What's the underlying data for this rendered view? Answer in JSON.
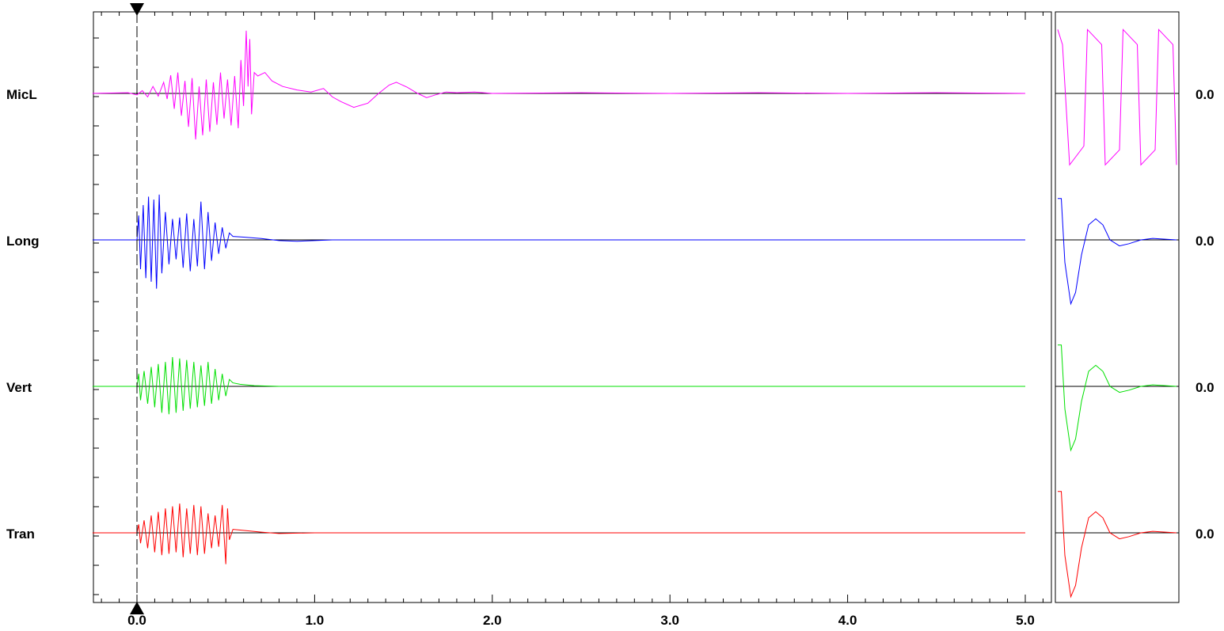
{
  "chart_data": {
    "type": "line",
    "title": "",
    "xlabel": "",
    "ylabel": "",
    "xlim": [
      -0.25,
      5.15
    ],
    "x_ticks": [
      "0.0",
      "1.0",
      "2.0",
      "3.0",
      "4.0",
      "5.0"
    ],
    "trigger_marker_x": 0.0,
    "grid": false,
    "series": [
      {
        "name": "MicL",
        "color": "#ff00ff",
        "right_value": "0.0",
        "points": [
          [
            -0.25,
            0
          ],
          [
            -0.05,
            0.01
          ],
          [
            0.0,
            -0.02
          ],
          [
            0.03,
            0.04
          ],
          [
            0.06,
            -0.05
          ],
          [
            0.09,
            0.1
          ],
          [
            0.12,
            -0.04
          ],
          [
            0.15,
            0.16
          ],
          [
            0.17,
            -0.08
          ],
          [
            0.19,
            0.26
          ],
          [
            0.21,
            -0.22
          ],
          [
            0.23,
            0.3
          ],
          [
            0.25,
            -0.32
          ],
          [
            0.27,
            0.18
          ],
          [
            0.29,
            -0.48
          ],
          [
            0.31,
            0.22
          ],
          [
            0.33,
            -0.66
          ],
          [
            0.35,
            0.1
          ],
          [
            0.37,
            -0.6
          ],
          [
            0.39,
            0.2
          ],
          [
            0.41,
            -0.55
          ],
          [
            0.43,
            0.16
          ],
          [
            0.45,
            -0.45
          ],
          [
            0.47,
            0.3
          ],
          [
            0.49,
            -0.36
          ],
          [
            0.51,
            0.2
          ],
          [
            0.53,
            -0.46
          ],
          [
            0.55,
            0.25
          ],
          [
            0.57,
            -0.5
          ],
          [
            0.585,
            0.48
          ],
          [
            0.6,
            -0.18
          ],
          [
            0.615,
            0.9
          ],
          [
            0.625,
            0.1
          ],
          [
            0.635,
            0.78
          ],
          [
            0.645,
            -0.3
          ],
          [
            0.66,
            0.3
          ],
          [
            0.68,
            0.25
          ],
          [
            0.72,
            0.3
          ],
          [
            0.76,
            0.18
          ],
          [
            0.82,
            0.1
          ],
          [
            0.9,
            0.05
          ],
          [
            0.98,
            0.02
          ],
          [
            1.05,
            0.07
          ],
          [
            1.1,
            -0.05
          ],
          [
            1.15,
            -0.12
          ],
          [
            1.22,
            -0.2
          ],
          [
            1.3,
            -0.14
          ],
          [
            1.36,
            0.0
          ],
          [
            1.42,
            0.12
          ],
          [
            1.46,
            0.16
          ],
          [
            1.52,
            0.09
          ],
          [
            1.58,
            0.0
          ],
          [
            1.63,
            -0.06
          ],
          [
            1.68,
            -0.02
          ],
          [
            1.74,
            0.02
          ],
          [
            1.8,
            0.01
          ],
          [
            1.9,
            0.02
          ],
          [
            2.0,
            0.0
          ],
          [
            2.5,
            0.01
          ],
          [
            3.0,
            0.0
          ],
          [
            3.5,
            0.01
          ],
          [
            4.0,
            0.0
          ],
          [
            4.5,
            0.01
          ],
          [
            5.0,
            0.0
          ]
        ],
        "inset_points": [
          [
            0.0,
            0.85
          ],
          [
            0.04,
            0.65
          ],
          [
            0.1,
            -0.95
          ],
          [
            0.22,
            -0.7
          ],
          [
            0.25,
            0.85
          ],
          [
            0.37,
            0.65
          ],
          [
            0.4,
            -0.95
          ],
          [
            0.52,
            -0.75
          ],
          [
            0.55,
            0.85
          ],
          [
            0.67,
            0.65
          ],
          [
            0.7,
            -0.95
          ],
          [
            0.82,
            -0.75
          ],
          [
            0.85,
            0.85
          ],
          [
            0.97,
            0.65
          ],
          [
            1.0,
            -0.95
          ]
        ]
      },
      {
        "name": "Long",
        "color": "#0000ff",
        "right_value": "0.0",
        "points": [
          [
            -0.25,
            0
          ],
          [
            0.0,
            0
          ],
          [
            0.01,
            0.35
          ],
          [
            0.02,
            -0.42
          ],
          [
            0.035,
            0.5
          ],
          [
            0.05,
            -0.55
          ],
          [
            0.065,
            0.62
          ],
          [
            0.08,
            -0.6
          ],
          [
            0.095,
            0.58
          ],
          [
            0.11,
            -0.7
          ],
          [
            0.125,
            0.65
          ],
          [
            0.14,
            -0.48
          ],
          [
            0.16,
            0.4
          ],
          [
            0.18,
            -0.35
          ],
          [
            0.2,
            0.3
          ],
          [
            0.22,
            -0.28
          ],
          [
            0.24,
            0.32
          ],
          [
            0.26,
            -0.4
          ],
          [
            0.28,
            0.38
          ],
          [
            0.3,
            -0.45
          ],
          [
            0.32,
            0.3
          ],
          [
            0.34,
            -0.38
          ],
          [
            0.36,
            0.55
          ],
          [
            0.38,
            -0.42
          ],
          [
            0.4,
            0.4
          ],
          [
            0.42,
            -0.3
          ],
          [
            0.44,
            0.25
          ],
          [
            0.46,
            -0.2
          ],
          [
            0.48,
            0.18
          ],
          [
            0.5,
            -0.12
          ],
          [
            0.52,
            0.1
          ],
          [
            0.54,
            0.05
          ],
          [
            0.6,
            0.04
          ],
          [
            0.7,
            0.02
          ],
          [
            0.8,
            -0.01
          ],
          [
            0.9,
            -0.02
          ],
          [
            1.0,
            -0.01
          ],
          [
            1.1,
            0.0
          ],
          [
            2.0,
            0.0
          ],
          [
            5.0,
            0.0
          ]
        ],
        "inset_points": [
          [
            0.0,
            0.55
          ],
          [
            0.03,
            0.55
          ],
          [
            0.06,
            -0.3
          ],
          [
            0.11,
            -0.85
          ],
          [
            0.15,
            -0.7
          ],
          [
            0.2,
            -0.2
          ],
          [
            0.26,
            0.2
          ],
          [
            0.32,
            0.28
          ],
          [
            0.38,
            0.2
          ],
          [
            0.44,
            0.0
          ],
          [
            0.52,
            -0.08
          ],
          [
            0.6,
            -0.05
          ],
          [
            0.7,
            0.0
          ],
          [
            0.8,
            0.02
          ],
          [
            1.0,
            0.0
          ]
        ]
      },
      {
        "name": "Vert",
        "color": "#00e000",
        "right_value": "0.0",
        "points": [
          [
            -0.25,
            0
          ],
          [
            0.0,
            0
          ],
          [
            0.01,
            0.18
          ],
          [
            0.02,
            -0.2
          ],
          [
            0.04,
            0.22
          ],
          [
            0.06,
            -0.25
          ],
          [
            0.08,
            0.28
          ],
          [
            0.1,
            -0.3
          ],
          [
            0.12,
            0.32
          ],
          [
            0.14,
            -0.38
          ],
          [
            0.16,
            0.35
          ],
          [
            0.18,
            -0.4
          ],
          [
            0.2,
            0.42
          ],
          [
            0.22,
            -0.38
          ],
          [
            0.24,
            0.4
          ],
          [
            0.26,
            -0.35
          ],
          [
            0.28,
            0.38
          ],
          [
            0.3,
            -0.32
          ],
          [
            0.32,
            0.35
          ],
          [
            0.34,
            -0.3
          ],
          [
            0.36,
            0.3
          ],
          [
            0.38,
            -0.28
          ],
          [
            0.4,
            0.35
          ],
          [
            0.42,
            -0.25
          ],
          [
            0.44,
            0.25
          ],
          [
            0.46,
            -0.2
          ],
          [
            0.48,
            0.18
          ],
          [
            0.5,
            -0.14
          ],
          [
            0.52,
            0.1
          ],
          [
            0.54,
            0.05
          ],
          [
            0.58,
            0.03
          ],
          [
            0.66,
            0.01
          ],
          [
            0.8,
            0.0
          ],
          [
            5.0,
            0.0
          ]
        ],
        "inset_points": [
          [
            0.0,
            0.55
          ],
          [
            0.03,
            0.55
          ],
          [
            0.06,
            -0.3
          ],
          [
            0.11,
            -0.85
          ],
          [
            0.15,
            -0.7
          ],
          [
            0.2,
            -0.2
          ],
          [
            0.26,
            0.2
          ],
          [
            0.32,
            0.28
          ],
          [
            0.38,
            0.2
          ],
          [
            0.44,
            0.0
          ],
          [
            0.52,
            -0.08
          ],
          [
            0.6,
            -0.05
          ],
          [
            0.7,
            0.0
          ],
          [
            0.8,
            0.02
          ],
          [
            1.0,
            0.0
          ]
        ]
      },
      {
        "name": "Tran",
        "color": "#ff0000",
        "right_value": "0.0",
        "points": [
          [
            -0.25,
            0
          ],
          [
            0.0,
            0
          ],
          [
            0.01,
            0.12
          ],
          [
            0.02,
            -0.15
          ],
          [
            0.04,
            0.18
          ],
          [
            0.06,
            -0.22
          ],
          [
            0.08,
            0.25
          ],
          [
            0.1,
            -0.28
          ],
          [
            0.12,
            0.3
          ],
          [
            0.14,
            -0.32
          ],
          [
            0.16,
            0.35
          ],
          [
            0.18,
            -0.3
          ],
          [
            0.2,
            0.38
          ],
          [
            0.22,
            -0.28
          ],
          [
            0.24,
            0.42
          ],
          [
            0.26,
            -0.35
          ],
          [
            0.28,
            0.35
          ],
          [
            0.3,
            -0.3
          ],
          [
            0.32,
            0.4
          ],
          [
            0.34,
            -0.32
          ],
          [
            0.36,
            0.38
          ],
          [
            0.38,
            -0.3
          ],
          [
            0.4,
            0.28
          ],
          [
            0.42,
            -0.22
          ],
          [
            0.44,
            0.25
          ],
          [
            0.46,
            -0.2
          ],
          [
            0.48,
            0.4
          ],
          [
            0.5,
            -0.45
          ],
          [
            0.51,
            0.35
          ],
          [
            0.52,
            -0.1
          ],
          [
            0.54,
            0.05
          ],
          [
            0.58,
            0.04
          ],
          [
            0.7,
            0.01
          ],
          [
            0.8,
            -0.01
          ],
          [
            1.0,
            0.0
          ],
          [
            5.0,
            0.0
          ]
        ],
        "inset_points": [
          [
            0.0,
            0.55
          ],
          [
            0.03,
            0.55
          ],
          [
            0.06,
            -0.3
          ],
          [
            0.11,
            -0.85
          ],
          [
            0.15,
            -0.7
          ],
          [
            0.2,
            -0.2
          ],
          [
            0.26,
            0.2
          ],
          [
            0.32,
            0.28
          ],
          [
            0.38,
            0.2
          ],
          [
            0.44,
            0.0
          ],
          [
            0.52,
            -0.08
          ],
          [
            0.6,
            -0.05
          ],
          [
            0.7,
            0.0
          ],
          [
            0.8,
            0.02
          ],
          [
            1.0,
            0.0
          ]
        ]
      }
    ]
  }
}
